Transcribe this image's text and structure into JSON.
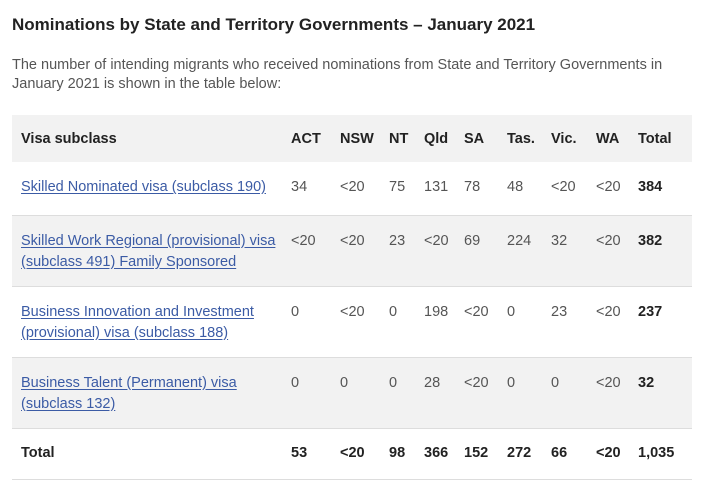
{
  "title": "Nominations by State and Territory Governments – January 2021",
  "intro": "The number of intending migrants who received nominations from State and Territory Governments in January 2021 is shown in the table below:",
  "table": {
    "headers": [
      "Visa subclass",
      "ACT",
      "NSW",
      "NT",
      "Qld",
      "SA",
      "Tas.",
      "Vic.",
      "WA",
      "Total"
    ],
    "rows": [
      {
        "visa": "Skilled Nominated visa (subclass 190)",
        "values": [
          "34",
          "<20",
          "75",
          "131",
          "78",
          "48",
          "<20",
          "<20",
          "384"
        ]
      },
      {
        "visa": "Skilled Work Regional (provisional) visa (subclass 491) Family Sponsored",
        "values": [
          "<20",
          "<20",
          "23",
          "<20",
          "69",
          "224",
          "32",
          "<20",
          "382"
        ]
      },
      {
        "visa": "Business Innovation and Investment (provisional) visa (subclass 188)",
        "values": [
          "0",
          "<20",
          "0",
          "198",
          "<20",
          "0",
          "23",
          "<20",
          "237"
        ]
      },
      {
        "visa": "Business Talent (Permanent) visa (subclass 132)",
        "values": [
          "0",
          "0",
          "0",
          "28",
          "<20",
          "0",
          "0",
          "<20",
          "32"
        ]
      }
    ],
    "total": {
      "label": "Total",
      "values": [
        "53",
        "<20",
        "98",
        "366",
        "152",
        "272",
        "66",
        "<20",
        "1,035"
      ]
    }
  }
}
